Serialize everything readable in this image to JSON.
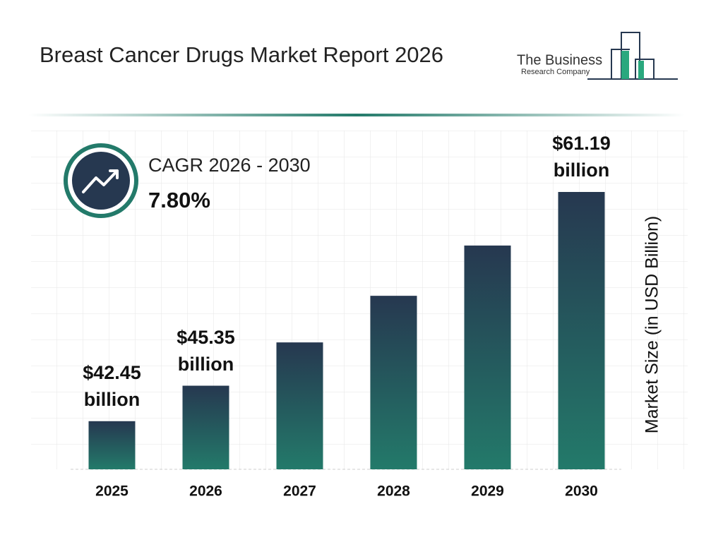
{
  "chart_data": {
    "type": "bar",
    "title": "Breast Cancer Drugs Market Report 2026",
    "categories": [
      "2025",
      "2026",
      "2027",
      "2028",
      "2029",
      "2030"
    ],
    "values": [
      42.45,
      45.35,
      48.89,
      52.7,
      56.81,
      61.19
    ],
    "value_labels": [
      "$42.45 billion",
      "$45.35 billion",
      null,
      null,
      null,
      "$61.19 billion"
    ],
    "color_top": "#263850",
    "color_bottom": "#237a6a",
    "y_label": "Market Size (in USD Billion)",
    "cagr_label": "CAGR 2026 - 2030",
    "cagr_value": "7.80%"
  },
  "logo": {
    "line1": "The Business",
    "line2": "Research Company"
  }
}
